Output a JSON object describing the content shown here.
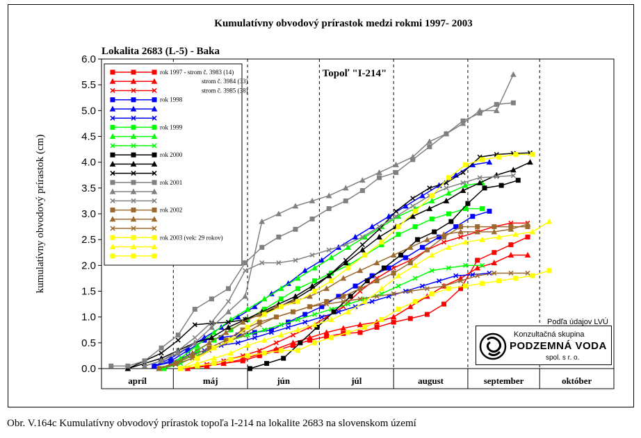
{
  "chart_data": {
    "type": "line",
    "title": "Kumulatívny obvodový prírastok medzi rokmi 1997- 2003",
    "subtitle": "Lokalita 2683 (L-5) - Baka",
    "inner_title": "Topoľ \"I-214\"",
    "ylabel": "kumulatívny obvodový prírastok (cm)",
    "xlabel": "",
    "ylim": [
      0,
      6
    ],
    "yticks": [
      "0.0",
      "0.5",
      "1.0",
      "1.5",
      "2.0",
      "2.5",
      "3.0",
      "3.5",
      "4.0",
      "4.5",
      "5.0",
      "5.5",
      "6.0"
    ],
    "x_unit": "day of year",
    "xlim": [
      91,
      305
    ],
    "months": [
      {
        "label": "apríl",
        "start": 91,
        "end": 121
      },
      {
        "label": "máj",
        "start": 121,
        "end": 152
      },
      {
        "label": "jún",
        "start": 152,
        "end": 182
      },
      {
        "label": "júl",
        "start": 182,
        "end": 213
      },
      {
        "label": "august",
        "start": 213,
        "end": 244
      },
      {
        "label": "september",
        "start": 244,
        "end": 274
      },
      {
        "label": "október",
        "start": 274,
        "end": 305
      }
    ],
    "grid": "vertical dashed month lines",
    "legend_position": "top-left",
    "series": [
      {
        "name": "rok 1997 - strom č. 3983 (14)",
        "color": "#ff0000",
        "marker": "square",
        "x": [
          127,
          135,
          142,
          150,
          157,
          164,
          171,
          178,
          185,
          192,
          199,
          206,
          213,
          220,
          227,
          234,
          241,
          248,
          255,
          262,
          269
        ],
        "y": [
          0.0,
          0.05,
          0.1,
          0.15,
          0.25,
          0.35,
          0.45,
          0.55,
          0.62,
          0.68,
          0.7,
          0.8,
          0.9,
          0.97,
          1.05,
          1.25,
          1.55,
          2.1,
          2.25,
          2.4,
          2.55
        ]
      },
      {
        "name": "strom č. 3984 (33)",
        "color": "#ff0000",
        "marker": "triangle",
        "x": [
          127,
          135,
          142,
          150,
          157,
          164,
          171,
          178,
          185,
          192,
          199,
          206,
          213,
          220,
          227,
          234,
          241,
          248,
          255,
          262,
          269
        ],
        "y": [
          0.0,
          0.05,
          0.1,
          0.18,
          0.28,
          0.38,
          0.5,
          0.6,
          0.7,
          0.78,
          0.85,
          0.9,
          1.0,
          1.2,
          1.4,
          1.6,
          1.75,
          1.95,
          2.05,
          2.2,
          2.2
        ]
      },
      {
        "name": "strom č. 3985 (38)",
        "color": "#ff0000",
        "marker": "x",
        "x": [
          127,
          135,
          142,
          150,
          157,
          164,
          171,
          178,
          185,
          192,
          199,
          206,
          213,
          220,
          227,
          234,
          241,
          248,
          255,
          262,
          269
        ],
        "y": [
          0.0,
          0.08,
          0.15,
          0.25,
          0.35,
          0.5,
          0.65,
          0.8,
          1.0,
          1.2,
          1.5,
          1.75,
          1.95,
          2.1,
          2.3,
          2.45,
          2.55,
          2.65,
          2.75,
          2.82,
          2.82
        ]
      },
      {
        "name": "rok 1998",
        "color": "#0000ff",
        "marker": "square",
        "x": [
          113,
          120,
          127,
          134,
          141,
          148,
          155,
          162,
          169,
          176,
          183,
          190,
          197,
          204,
          211,
          218,
          225,
          232,
          239,
          246,
          253
        ],
        "y": [
          0.05,
          0.15,
          0.35,
          0.55,
          0.6,
          0.65,
          0.7,
          0.75,
          0.9,
          1.05,
          1.2,
          1.4,
          1.6,
          1.8,
          1.95,
          2.15,
          2.35,
          2.55,
          2.75,
          2.95,
          3.05
        ]
      },
      {
        "name": "",
        "color": "#0000ff",
        "marker": "triangle",
        "x": [
          113,
          120,
          127,
          134,
          141,
          148,
          155,
          162,
          169,
          176,
          183,
          190,
          197,
          204,
          211,
          218,
          225,
          232,
          239,
          246,
          253
        ],
        "y": [
          0.05,
          0.2,
          0.4,
          0.6,
          0.8,
          1.0,
          1.2,
          1.45,
          1.65,
          1.9,
          2.1,
          2.35,
          2.55,
          2.75,
          2.95,
          3.15,
          3.35,
          3.55,
          3.75,
          3.95,
          4.0
        ]
      },
      {
        "name": "",
        "color": "#0000ff",
        "marker": "x",
        "x": [
          113,
          120,
          127,
          134,
          141,
          148,
          155,
          162,
          169,
          176,
          183,
          190,
          197,
          204,
          211,
          218,
          225,
          232,
          239,
          246,
          253
        ],
        "y": [
          0.05,
          0.12,
          0.25,
          0.35,
          0.45,
          0.5,
          0.6,
          0.7,
          0.8,
          0.9,
          1.0,
          1.1,
          1.2,
          1.3,
          1.4,
          1.5,
          1.6,
          1.7,
          1.8,
          1.82,
          1.85
        ]
      },
      {
        "name": "rok 1999",
        "color": "#00ff00",
        "marker": "square",
        "x": [
          117,
          124,
          131,
          138,
          145,
          152,
          159,
          166,
          173,
          180,
          187,
          194,
          201,
          208,
          215,
          222,
          229,
          236,
          243,
          250
        ],
        "y": [
          0.0,
          0.15,
          0.35,
          0.55,
          0.75,
          0.95,
          1.15,
          1.35,
          1.55,
          1.7,
          1.85,
          2.0,
          2.2,
          2.4,
          2.6,
          2.75,
          2.9,
          3.0,
          3.1,
          3.1
        ]
      },
      {
        "name": "",
        "color": "#00ff00",
        "marker": "triangle",
        "x": [
          117,
          124,
          131,
          138,
          145,
          152,
          159,
          166,
          173,
          180,
          187,
          194,
          201,
          208,
          215,
          222,
          229,
          236,
          243,
          250
        ],
        "y": [
          0.0,
          0.2,
          0.45,
          0.7,
          0.95,
          1.15,
          1.35,
          1.55,
          1.75,
          1.95,
          2.15,
          2.35,
          2.55,
          2.75,
          2.95,
          3.1,
          3.25,
          3.4,
          3.55,
          3.6
        ]
      },
      {
        "name": "",
        "color": "#00ff00",
        "marker": "x",
        "x": [
          117,
          124,
          131,
          138,
          145,
          152,
          159,
          166,
          173,
          180,
          187,
          194,
          201,
          208,
          215,
          222,
          229,
          236,
          243,
          250
        ],
        "y": [
          0.0,
          0.1,
          0.25,
          0.4,
          0.55,
          0.65,
          0.75,
          0.85,
          0.95,
          1.05,
          1.15,
          1.25,
          1.35,
          1.45,
          1.6,
          1.75,
          1.9,
          1.95,
          2.0,
          2.0
        ]
      },
      {
        "name": "rok 2000",
        "color": "#000000",
        "marker": "square",
        "x": [
          153,
          160,
          167,
          174,
          181,
          188,
          195,
          202,
          209,
          216,
          223,
          230,
          237,
          244,
          251,
          258,
          265
        ],
        "y": [
          0.0,
          0.1,
          0.2,
          0.5,
          0.8,
          1.1,
          1.4,
          1.7,
          1.95,
          2.2,
          2.5,
          2.65,
          2.85,
          3.2,
          3.5,
          3.55,
          3.65
        ]
      },
      {
        "name": "",
        "color": "#000000",
        "marker": "triangle",
        "x": [
          102,
          109,
          116,
          123,
          130,
          137,
          144,
          151,
          158,
          165,
          172,
          179,
          186,
          193,
          200,
          207,
          214,
          221,
          228,
          235,
          242,
          249,
          256,
          263,
          270
        ],
        "y": [
          0.0,
          0.1,
          0.2,
          0.35,
          0.5,
          0.6,
          0.8,
          0.95,
          1.1,
          1.25,
          1.4,
          1.6,
          1.8,
          2.05,
          2.3,
          2.55,
          2.75,
          2.95,
          3.1,
          3.25,
          3.45,
          3.6,
          3.75,
          3.85,
          4.0
        ]
      },
      {
        "name": "",
        "color": "#000000",
        "marker": "x",
        "x": [
          102,
          109,
          116,
          123,
          130,
          137,
          144,
          151,
          158,
          165,
          172,
          179,
          186,
          193,
          200,
          207,
          214,
          221,
          228,
          235,
          242,
          249,
          256,
          263,
          270
        ],
        "y": [
          0.0,
          0.15,
          0.3,
          0.55,
          0.85,
          0.88,
          0.9,
          0.95,
          1.05,
          1.2,
          1.35,
          1.55,
          1.8,
          2.1,
          2.4,
          2.7,
          3.05,
          3.3,
          3.5,
          3.6,
          3.8,
          4.1,
          4.15,
          4.17,
          4.18
        ]
      },
      {
        "name": "rok 2001",
        "color": "#808080",
        "marker": "square",
        "x": [
          95,
          102,
          109,
          116,
          123,
          130,
          137,
          144,
          151,
          158,
          165,
          172,
          179,
          186,
          193,
          200,
          207,
          214,
          221,
          228,
          235,
          242,
          249,
          256,
          263
        ],
        "y": [
          0.05,
          0.05,
          0.15,
          0.4,
          0.65,
          1.15,
          1.35,
          1.55,
          2.05,
          2.35,
          2.55,
          2.7,
          2.9,
          3.1,
          3.25,
          3.45,
          3.7,
          3.8,
          4.05,
          4.3,
          4.55,
          4.8,
          4.95,
          5.12,
          5.15
        ]
      },
      {
        "name": "",
        "color": "#808080",
        "marker": "triangle",
        "x": [
          109,
          116,
          123,
          130,
          137,
          144,
          151,
          158,
          165,
          172,
          179,
          186,
          193,
          200,
          207,
          214,
          221,
          228,
          235,
          242,
          249,
          256,
          263
        ],
        "y": [
          0.05,
          0.15,
          0.3,
          0.5,
          0.8,
          1.1,
          1.4,
          2.85,
          3.0,
          3.15,
          3.25,
          3.35,
          3.5,
          3.65,
          3.8,
          3.95,
          4.1,
          4.4,
          4.55,
          4.75,
          5.0,
          5.0,
          5.7
        ]
      },
      {
        "name": "",
        "color": "#808080",
        "marker": "x",
        "x": [
          109,
          116,
          123,
          130,
          137,
          144,
          151,
          158,
          165,
          172,
          179,
          186,
          193,
          200,
          207,
          214,
          221,
          228,
          235,
          242,
          249,
          256,
          263
        ],
        "y": [
          0.05,
          0.15,
          0.35,
          0.6,
          0.9,
          1.3,
          1.9,
          2.05,
          2.05,
          2.1,
          2.2,
          2.3,
          2.4,
          2.55,
          2.75,
          2.95,
          3.15,
          3.35,
          3.5,
          3.6,
          3.7,
          3.72,
          3.74
        ]
      },
      {
        "name": "rok 2002",
        "color": "#9c6a2e",
        "marker": "square",
        "x": [
          115,
          122,
          129,
          136,
          143,
          150,
          157,
          164,
          171,
          178,
          185,
          192,
          199,
          206,
          213,
          220,
          227,
          234,
          241,
          248,
          255,
          262,
          269
        ],
        "y": [
          0.0,
          0.1,
          0.25,
          0.4,
          0.55,
          0.75,
          0.9,
          1.0,
          1.1,
          1.2,
          1.3,
          1.4,
          1.55,
          1.7,
          1.85,
          2.05,
          2.3,
          2.55,
          2.75,
          2.75,
          2.75,
          2.75,
          2.75
        ]
      },
      {
        "name": "",
        "color": "#9c6a2e",
        "marker": "triangle",
        "x": [
          115,
          122,
          129,
          136,
          143,
          150,
          157,
          164,
          171,
          178,
          185,
          192,
          199,
          206,
          213,
          220,
          227,
          234,
          241,
          248,
          255,
          262,
          269
        ],
        "y": [
          0.0,
          0.12,
          0.3,
          0.5,
          0.7,
          0.9,
          1.05,
          1.2,
          1.3,
          1.4,
          1.55,
          1.75,
          1.9,
          2.05,
          2.2,
          2.35,
          2.5,
          2.6,
          2.65,
          2.65,
          2.65,
          2.7,
          2.8
        ]
      },
      {
        "name": "",
        "color": "#9c6a2e",
        "marker": "x",
        "x": [
          115,
          122,
          129,
          136,
          143,
          150,
          157,
          164,
          171,
          178,
          185,
          192,
          199,
          206,
          213,
          220,
          227,
          234,
          241,
          248,
          255,
          262,
          269
        ],
        "y": [
          0.0,
          0.08,
          0.2,
          0.35,
          0.5,
          0.65,
          0.85,
          1.0,
          1.1,
          1.2,
          1.25,
          1.3,
          1.35,
          1.4,
          1.45,
          1.5,
          1.55,
          1.6,
          1.7,
          1.8,
          1.85,
          1.85,
          1.85
        ]
      },
      {
        "name": "rok 2003 (vek: 29 rokov)",
        "color": "#ffff00",
        "marker": "square",
        "x": [
          124,
          131,
          138,
          145,
          152,
          159,
          166,
          173,
          180,
          187,
          194,
          201,
          208,
          215,
          222,
          229,
          236,
          243,
          250,
          257,
          264,
          271
        ],
        "y": [
          0.0,
          0.2,
          0.4,
          0.55,
          0.8,
          1.05,
          1.2,
          1.3,
          1.5,
          1.7,
          1.95,
          2.2,
          2.45,
          2.75,
          3.05,
          3.35,
          3.7,
          3.95,
          4.05,
          4.1,
          4.15,
          4.15
        ]
      },
      {
        "name": "",
        "color": "#ffff00",
        "marker": "triangle",
        "x": [
          124,
          131,
          138,
          145,
          152,
          159,
          166,
          173,
          180,
          187,
          194,
          201,
          208,
          215,
          222,
          229,
          236,
          243,
          250,
          257,
          264,
          271,
          278
        ],
        "y": [
          0.0,
          0.1,
          0.2,
          0.3,
          0.45,
          0.55,
          0.65,
          0.75,
          0.85,
          0.95,
          1.1,
          1.3,
          1.55,
          1.8,
          2.0,
          2.2,
          2.35,
          2.45,
          2.5,
          2.55,
          2.6,
          2.65,
          2.85
        ]
      },
      {
        "name": "",
        "color": "#ffff00",
        "marker": "square",
        "x": [
          124,
          131,
          138,
          145,
          152,
          159,
          166,
          173,
          180,
          187,
          194,
          201,
          208,
          215,
          222,
          229,
          236,
          243,
          250,
          257,
          264,
          271,
          278
        ],
        "y": [
          0.0,
          0.05,
          0.1,
          0.18,
          0.25,
          0.3,
          0.35,
          0.35,
          0.5,
          0.6,
          0.7,
          0.8,
          0.95,
          1.15,
          1.3,
          1.45,
          1.55,
          1.6,
          1.65,
          1.7,
          1.75,
          1.8,
          1.9
        ]
      }
    ],
    "logo": {
      "credit": "Podľa údajov LVÚ",
      "line1": "Konzultačná skupina",
      "line2": "PODZEMNÁ VODA",
      "line3": "spol. s r. o."
    }
  },
  "caption": "Obr. V.164c Kumulatívny obvodový prírastok topoľa I-214 na lokalite 2683 na slovenskom území"
}
